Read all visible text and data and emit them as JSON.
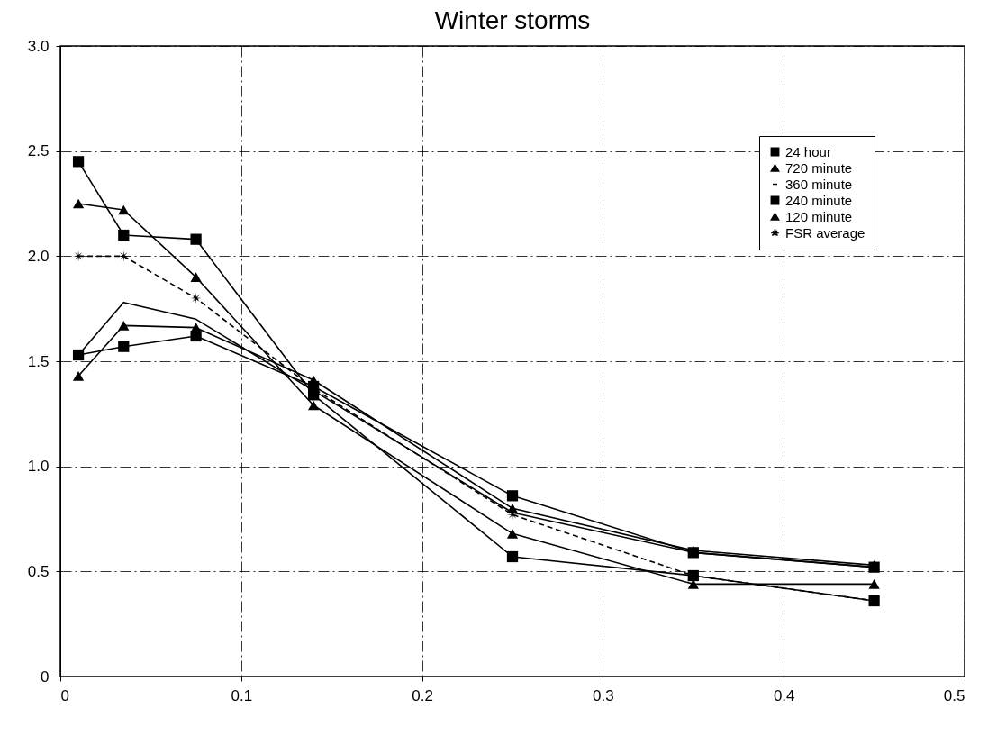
{
  "chart_data": {
    "type": "line",
    "title": "Winter storms",
    "x": [
      0.01,
      0.035,
      0.075,
      0.14,
      0.25,
      0.35,
      0.45
    ],
    "xlim": [
      0,
      0.5
    ],
    "xticks": [
      0,
      0.1,
      0.2,
      0.3,
      0.4,
      0.5
    ],
    "ylim": [
      0,
      3
    ],
    "yticks": [
      0,
      {
        "value": 0.5,
        "label": "0.5"
      },
      {
        "value": 1,
        "label": "1.0"
      },
      {
        "value": 1.5,
        "label": "1.5"
      },
      {
        "value": 2,
        "label": "2.0"
      },
      {
        "value": 2.5,
        "label": "2.5"
      },
      {
        "value": 3,
        "label": "3.0"
      }
    ],
    "grid": true,
    "legend": "top right",
    "series": [
      {
        "name": "24 hour",
        "color": "#000000",
        "marker": "square",
        "line_style": "solid",
        "values": [
          2.45,
          2.1,
          2.08,
          1.34,
          0.57,
          0.48,
          0.36
        ]
      },
      {
        "name": "720 minute",
        "color": "#000000",
        "marker": "triangle",
        "line_style": "solid",
        "values": [
          2.25,
          2.22,
          1.9,
          1.29,
          0.68,
          0.44,
          0.44
        ]
      },
      {
        "name": "360 minute",
        "color": "#000000",
        "marker": "none",
        "line_style": "solid",
        "values": [
          1.53,
          1.78,
          1.7,
          1.36,
          0.78,
          0.59,
          0.52
        ]
      },
      {
        "name": "240 minute",
        "color": "#000000",
        "marker": "square",
        "line_style": "solid",
        "values": [
          1.53,
          1.57,
          1.62,
          1.38,
          0.86,
          0.59,
          0.52
        ]
      },
      {
        "name": "120 minute",
        "color": "#000000",
        "marker": "triangle",
        "line_style": "solid",
        "values": [
          1.43,
          1.67,
          1.66,
          1.41,
          0.8,
          0.6,
          0.53
        ]
      },
      {
        "name": "FSR average",
        "color": "#000000",
        "marker": "star",
        "line_style": "dashed",
        "values": [
          2.0,
          2.0,
          1.8,
          1.37,
          0.77,
          0.48,
          0.36
        ]
      }
    ]
  }
}
